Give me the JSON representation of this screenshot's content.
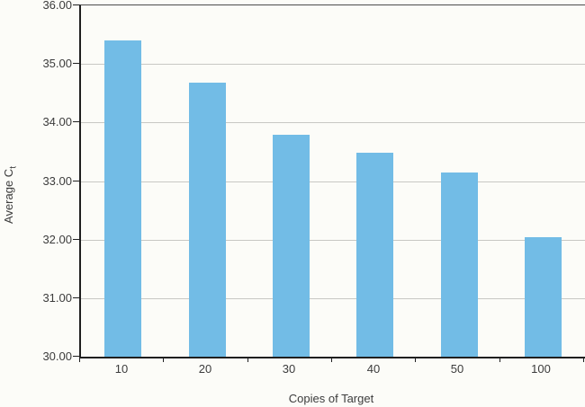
{
  "chart_data": {
    "type": "bar",
    "title": "",
    "categories": [
      "10",
      "20",
      "30",
      "40",
      "50",
      "100"
    ],
    "values": [
      35.4,
      34.68,
      33.79,
      33.48,
      33.14,
      32.04
    ],
    "xlabel": "Copies of Target",
    "ylabel_main": "Average C",
    "ylabel_sub": "t",
    "ylim": [
      30,
      36
    ],
    "ytick_step": 1,
    "ytick_labels": [
      "36.00",
      "35.00",
      "34.00",
      "33.00",
      "32.00",
      "31.00",
      "30.00"
    ],
    "grid": "horizontal gridlines at each 1.00",
    "legend": "none",
    "bar_color": "#72bce6",
    "grid_color": "#c8c8c4",
    "axis_color": "#1f1f1f",
    "frame_color": "#4d4d4d",
    "text_color": "#3c3c3c",
    "background_color": "#fcfcf8"
  }
}
